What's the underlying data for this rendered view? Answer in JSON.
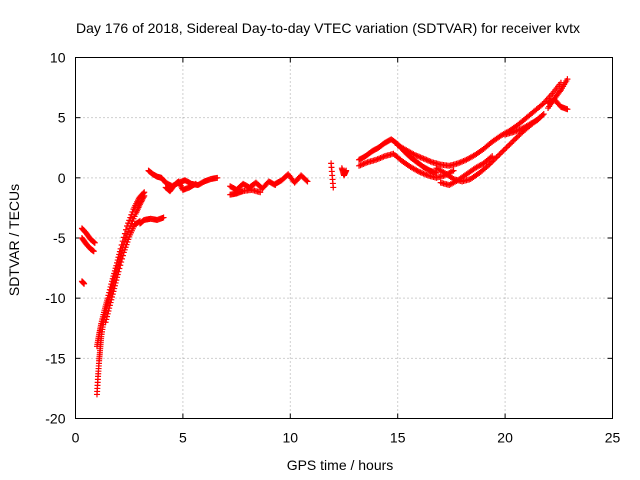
{
  "chart_data": {
    "type": "scatter",
    "title": "Day 176 of 2018, Sidereal Day-to-day VTEC variation (SDTVAR) for receiver kvtx",
    "xlabel": "GPS time / hours",
    "ylabel": "SDTVAR / TECUs",
    "xlim": [
      0,
      25
    ],
    "ylim": [
      -20,
      10
    ],
    "xticks": [
      0,
      5,
      10,
      15,
      20,
      25
    ],
    "yticks": [
      -20,
      -15,
      -10,
      -5,
      0,
      5,
      10
    ],
    "xtick_labels": [
      "0",
      "5",
      "10",
      "15",
      "20",
      "25"
    ],
    "ytick_labels": [
      "-20",
      "-15",
      "-10",
      "-5",
      "0",
      "5",
      "10"
    ],
    "grid": true,
    "marker": "+",
    "color": "#ff0000",
    "series": [
      {
        "name": "SDTVAR",
        "segments": [
          {
            "x": [
              0.3,
              0.5,
              0.7,
              0.9
            ],
            "y": [
              -4.2,
              -4.6,
              -5.1,
              -5.4
            ]
          },
          {
            "x": [
              0.3,
              0.5,
              0.7,
              0.85
            ],
            "y": [
              -5.0,
              -5.5,
              -5.9,
              -6.1
            ]
          },
          {
            "x": [
              0.3,
              0.4
            ],
            "y": [
              -8.6,
              -8.8
            ]
          },
          {
            "x": [
              1.0,
              1.05,
              1.1,
              1.15,
              1.2,
              1.3,
              1.45,
              1.6,
              1.8,
              2.0,
              2.2,
              2.5,
              2.8,
              3.0,
              3.2
            ],
            "y": [
              -18.0,
              -16.5,
              -15.2,
              -14.2,
              -13.2,
              -12.0,
              -10.8,
              -9.8,
              -8.5,
              -7.2,
              -5.8,
              -4.2,
              -3.0,
              -2.2,
              -1.5
            ]
          },
          {
            "x": [
              1.0,
              1.1,
              1.2,
              1.35,
              1.5,
              1.7,
              1.9,
              2.1,
              2.4,
              2.7,
              2.95,
              3.2
            ],
            "y": [
              -14.0,
              -13.0,
              -12.1,
              -11.0,
              -10.0,
              -8.6,
              -7.3,
              -5.9,
              -4.0,
              -2.6,
              -1.7,
              -1.2
            ]
          },
          {
            "x": [
              1.4,
              1.6,
              1.8,
              2.0,
              2.25,
              2.5,
              2.75,
              3.0
            ],
            "y": [
              -12.0,
              -10.6,
              -9.2,
              -7.8,
              -6.2,
              -4.9,
              -3.9,
              -3.6
            ]
          },
          {
            "x": [
              3.0,
              3.2,
              3.5,
              3.8,
              4.1
            ],
            "y": [
              -3.8,
              -3.5,
              -3.4,
              -3.5,
              -3.3
            ]
          },
          {
            "x": [
              3.4,
              3.6,
              3.8,
              4.0,
              4.2,
              4.5,
              4.8,
              5.1,
              5.4,
              5.7,
              6.0,
              6.3,
              6.6
            ],
            "y": [
              0.6,
              0.3,
              0.1,
              0.0,
              -0.4,
              -0.7,
              -0.4,
              -0.2,
              -0.5,
              -0.6,
              -0.3,
              -0.1,
              0.0
            ]
          },
          {
            "x": [
              4.2,
              4.4,
              4.6,
              4.8,
              5.0,
              5.3,
              5.6
            ],
            "y": [
              -0.8,
              -1.1,
              -0.6,
              -0.3,
              -1.0,
              -0.8,
              -0.5
            ]
          },
          {
            "x": [
              7.2,
              7.5,
              7.8,
              8.1,
              8.4,
              8.7,
              9.0,
              9.3
            ],
            "y": [
              -0.7,
              -1.0,
              -0.5,
              -0.8,
              -0.4,
              -0.9,
              -0.3,
              -0.6
            ]
          },
          {
            "x": [
              7.2,
              7.5,
              7.8,
              8.2,
              8.6
            ],
            "y": [
              -1.4,
              -1.3,
              -1.1,
              -1.0,
              -1.2
            ]
          },
          {
            "x": [
              9.3,
              9.6,
              9.9,
              10.2,
              10.5,
              10.8
            ],
            "y": [
              -0.5,
              -0.2,
              0.3,
              -0.4,
              0.2,
              -0.3
            ]
          },
          {
            "x": [
              11.9,
              12.0
            ],
            "y": [
              1.2,
              -0.8
            ]
          },
          {
            "x": [
              12.4,
              12.5,
              12.6
            ],
            "y": [
              0.8,
              0.2,
              0.6
            ]
          },
          {
            "x": [
              13.2,
              13.5,
              13.8,
              14.1,
              14.4,
              14.7,
              15.0,
              15.3,
              15.6,
              15.9,
              16.2,
              16.5,
              16.8
            ],
            "y": [
              1.5,
              1.8,
              2.2,
              2.5,
              2.9,
              3.2,
              2.8,
              2.2,
              1.7,
              1.3,
              0.9,
              0.6,
              0.4
            ]
          },
          {
            "x": [
              13.2,
              13.6,
              14.0,
              14.4,
              14.8,
              15.2,
              15.6,
              16.0,
              16.4,
              16.8,
              17.2,
              17.6
            ],
            "y": [
              1.0,
              1.3,
              1.5,
              1.8,
              2.0,
              1.4,
              0.9,
              0.5,
              0.2,
              0.0,
              0.2,
              0.6
            ]
          },
          {
            "x": [
              15.0,
              15.4,
              15.8,
              16.2,
              16.6,
              17.0,
              17.4,
              17.8,
              18.2,
              18.6,
              19.0,
              19.4,
              19.8,
              20.2,
              20.6,
              21.0,
              21.4,
              21.8,
              22.2,
              22.6
            ],
            "y": [
              2.7,
              2.3,
              1.9,
              1.6,
              1.3,
              1.1,
              1.0,
              1.2,
              1.5,
              1.9,
              2.4,
              3.0,
              3.5,
              3.9,
              4.4,
              5.0,
              5.6,
              6.2,
              7.0,
              7.9
            ]
          },
          {
            "x": [
              16.8,
              17.2,
              17.6,
              18.0,
              18.4,
              18.8,
              19.2,
              19.6,
              20.0,
              20.4,
              20.8,
              21.2,
              21.6
            ],
            "y": [
              0.8,
              0.4,
              -0.1,
              -0.3,
              -0.1,
              0.4,
              1.0,
              1.7,
              2.4,
              3.1,
              3.8,
              4.4,
              5.0
            ]
          },
          {
            "x": [
              17.0,
              17.4,
              17.8,
              18.2,
              18.6,
              19.0,
              19.4
            ],
            "y": [
              -0.4,
              -0.6,
              -0.2,
              0.3,
              0.8,
              1.2,
              1.8
            ]
          },
          {
            "x": [
              20.0,
              20.4,
              20.8,
              21.2,
              21.5,
              21.8
            ],
            "y": [
              3.6,
              3.8,
              4.1,
              4.5,
              4.8,
              5.3
            ]
          },
          {
            "x": [
              22.0,
              22.3,
              22.6,
              22.9
            ],
            "y": [
              5.8,
              6.6,
              7.3,
              8.2
            ]
          },
          {
            "x": [
              22.0,
              22.3,
              22.6,
              22.9
            ],
            "y": [
              6.2,
              6.5,
              5.9,
              5.7
            ]
          }
        ]
      }
    ]
  }
}
